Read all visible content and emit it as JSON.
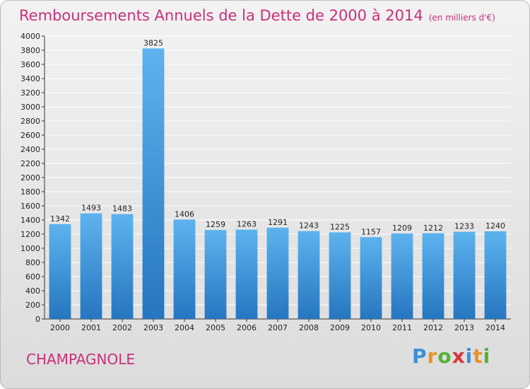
{
  "title": "Remboursements Annuels de la Dette de 2000 à 2014",
  "unit_label": "(en milliers d'€)",
  "city": "CHAMPAGNOLE",
  "logo": {
    "text": "Proxiti",
    "letters": [
      {
        "ch": "P",
        "color": "#3c8fd8"
      },
      {
        "ch": "r",
        "color": "#e8932a"
      },
      {
        "ch": "o",
        "color": "#55b234"
      },
      {
        "ch": "x",
        "color": "#d9343a"
      },
      {
        "ch": "i",
        "color": "#3c8fd8"
      },
      {
        "ch": "t",
        "color": "#e8932a"
      },
      {
        "ch": "i",
        "color": "#55b234"
      }
    ]
  },
  "colors": {
    "bar_light": "#5db3ee",
    "bar_dark": "#2676c0",
    "title": "#c9307a",
    "grid": "#ffffff",
    "axis": "#333333"
  },
  "chart_data": {
    "type": "bar",
    "title": "Remboursements Annuels de la Dette de 2000 à 2014",
    "categories": [
      "2000",
      "2001",
      "2002",
      "2003",
      "2004",
      "2005",
      "2006",
      "2007",
      "2008",
      "2009",
      "2010",
      "2011",
      "2012",
      "2013",
      "2014"
    ],
    "values": [
      1342,
      1493,
      1483,
      3825,
      1406,
      1259,
      1263,
      1291,
      1243,
      1225,
      1157,
      1209,
      1212,
      1233,
      1240
    ],
    "ylim": [
      0,
      4000
    ],
    "ytick_step": 200,
    "grid": true,
    "xlabel": "",
    "ylabel": ""
  }
}
